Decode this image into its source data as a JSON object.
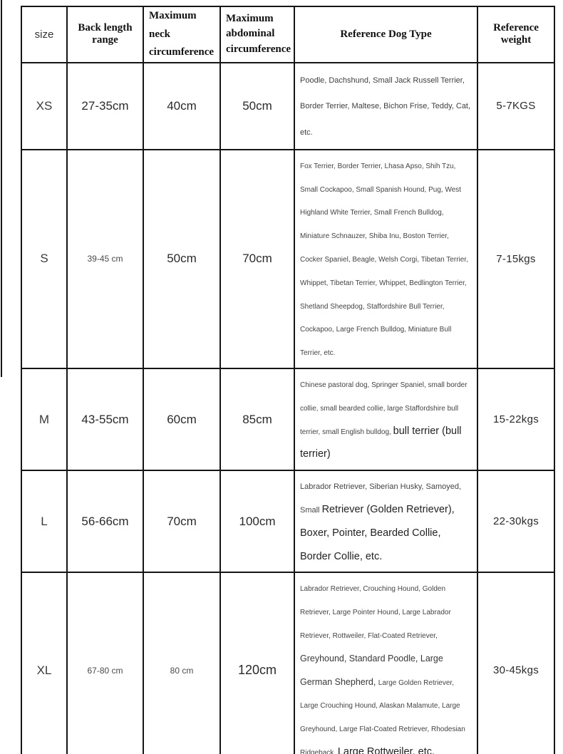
{
  "table": {
    "headers": [
      "size",
      "Back length range",
      "Maximum neck circumference",
      "Maximum abdominal circumference",
      "Reference Dog Type",
      "Reference weight"
    ],
    "rows": [
      {
        "key": "xs",
        "size": "XS",
        "back_length": "27-35cm",
        "neck": "40cm",
        "abdominal": "50cm",
        "dog_type": [
          {
            "text": "Poodle, Dachshund, Small Jack Russell Terrier, Border Terrier, Maltese, Bichon Frise, Teddy, Cat, etc.",
            "style": "small"
          }
        ],
        "weight": "5-7KGS"
      },
      {
        "key": "s",
        "size": "S",
        "back_length": "39-45 cm",
        "neck": "50cm",
        "abdominal": "70cm",
        "dog_type": [
          {
            "text": "Fox Terrier, Border Terrier, Lhasa Apso, Shih Tzu, Small Cockapoo, Small Spanish Hound, Pug, West Highland White Terrier, Small French Bulldog, Miniature Schnauzer, Shiba Inu, Boston Terrier, Cocker Spaniel, Beagle, Welsh Corgi, Tibetan Terrier, Whippet, Tibetan Terrier, Whippet, Bedlington Terrier, Shetland Sheepdog, Staffordshire Bull Terrier, Cockapoo, Large French Bulldog, Miniature Bull Terrier, etc.",
            "style": "tiny"
          }
        ],
        "weight": "7-15kgs"
      },
      {
        "key": "m",
        "size": "M",
        "back_length": "43-55cm",
        "neck": "60cm",
        "abdominal": "85cm",
        "dog_type": [
          {
            "text": "Chinese pastoral dog, Springer Spaniel, small border collie, small bearded collie, large Staffordshire bull terrier, small English bulldog, ",
            "style": "tiny"
          },
          {
            "text": "bull terrier (bull terrier)",
            "style": "large"
          }
        ],
        "weight": "15-22kgs"
      },
      {
        "key": "l",
        "size": "L",
        "back_length": "56-66cm",
        "neck": "70cm",
        "abdominal": "100cm",
        "dog_type": [
          {
            "text": "Labrador Retriever, Siberian Husky, Samoyed, Small ",
            "style": "small"
          },
          {
            "text": "Retriever (Golden Retriever), Boxer, Pointer, Bearded Collie, Border Collie, etc.",
            "style": "large"
          }
        ],
        "weight": "22-30kgs"
      },
      {
        "key": "xl",
        "size": "XL",
        "back_length": "67-80 cm",
        "neck": "80 cm",
        "abdominal": "120cm",
        "dog_type": [
          {
            "text": "Labrador Retriever, Crouching Hound, Golden Retriever, Large Pointer Hound, Large Labrador Retriever, Rottweiler, Flat-Coated Retriever, ",
            "style": "tiny"
          },
          {
            "text": "Greyhound, Standard Poodle, Large German Shepherd, ",
            "style": "medium"
          },
          {
            "text": "Large Golden Retriever, Large Crouching Hound, Alaskan Malamute, Large Greyhound, Large Flat-Coated Retriever, Rhodesian Ridgeback, ",
            "style": "tiny"
          },
          {
            "text": "Large Rottweiler, etc.",
            "style": "large"
          }
        ],
        "weight": "30-45kgs"
      }
    ]
  }
}
